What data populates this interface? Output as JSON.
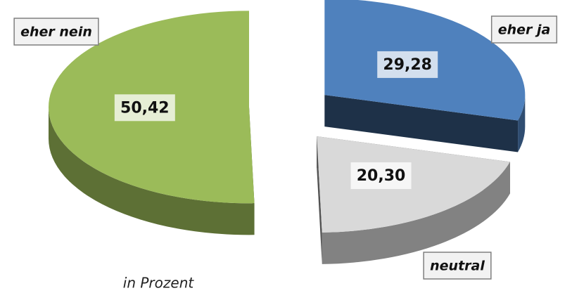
{
  "chart_data": {
    "type": "pie3d",
    "categories": [
      "eher ja",
      "neutral",
      "eher nein"
    ],
    "values": [
      29.28,
      20.3,
      50.42
    ],
    "value_labels": [
      "29,28",
      "20,30",
      "50,42"
    ],
    "colors": [
      "#4f81bd",
      "#d9d9d9",
      "#9bbb59"
    ],
    "annotation": "in Prozent"
  }
}
